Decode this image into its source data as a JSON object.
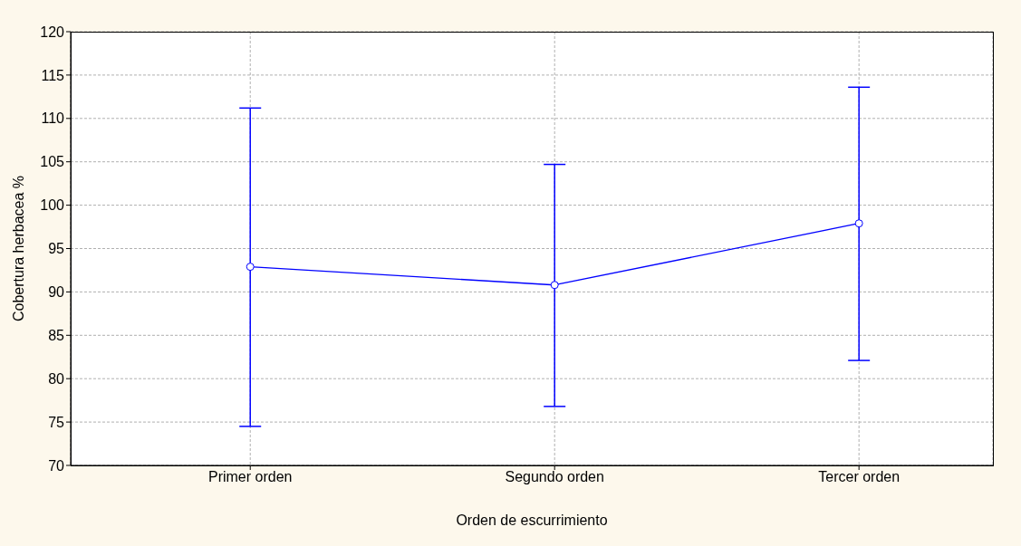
{
  "chart_data": {
    "type": "line",
    "xlabel": "Orden de escurrimiento",
    "ylabel": "Cobertura herbacea %",
    "categories": [
      "Primer orden",
      "Segundo orden",
      "Tercer orden"
    ],
    "series": [
      {
        "color": "#0000ff",
        "values": [
          92.9,
          90.8,
          97.9
        ],
        "errors": [
          [
            74.5,
            111.2
          ],
          [
            76.8,
            104.7
          ],
          [
            82.1,
            113.6
          ]
        ]
      }
    ],
    "ylim": [
      70,
      120
    ],
    "yticks": [
      70,
      75,
      80,
      85,
      90,
      95,
      100,
      105,
      110,
      115,
      120
    ],
    "grid": true,
    "marker": "circle",
    "line_style": "solid",
    "legend": false
  }
}
